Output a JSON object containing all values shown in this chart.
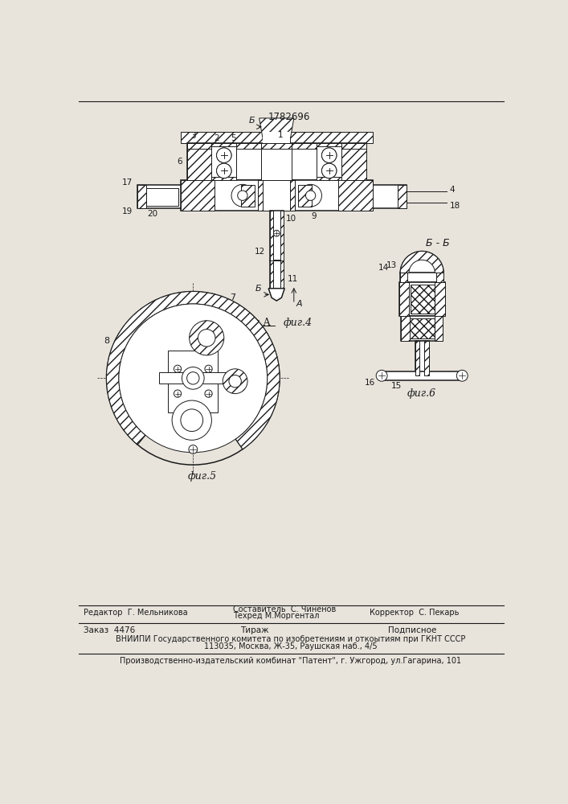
{
  "patent_number": "1782696",
  "bg_color": "#e8e4dc",
  "line_color": "#1a1a1a",
  "footer": {
    "editor": "Редактор  Г. Мельникова",
    "composer": "Составитель  С. Чиненов",
    "techred": "Техред М.Моргентал",
    "corrector": "Корректор  С. Пекарь",
    "order": "Заказ  4476",
    "tirazh": "Тираж",
    "podpisnoe": "Подписное",
    "vniipи": "ВНИИПИ Государственного комитета по изобретениям и откоытиям при ГКНТ СССР",
    "address": "113035, Москва, Ж-35, Раушская наб., 4/5",
    "factory": "Производственно-издательский комбинат \"Патент\", г. Ужгород, ул.Гагарина, 101"
  }
}
